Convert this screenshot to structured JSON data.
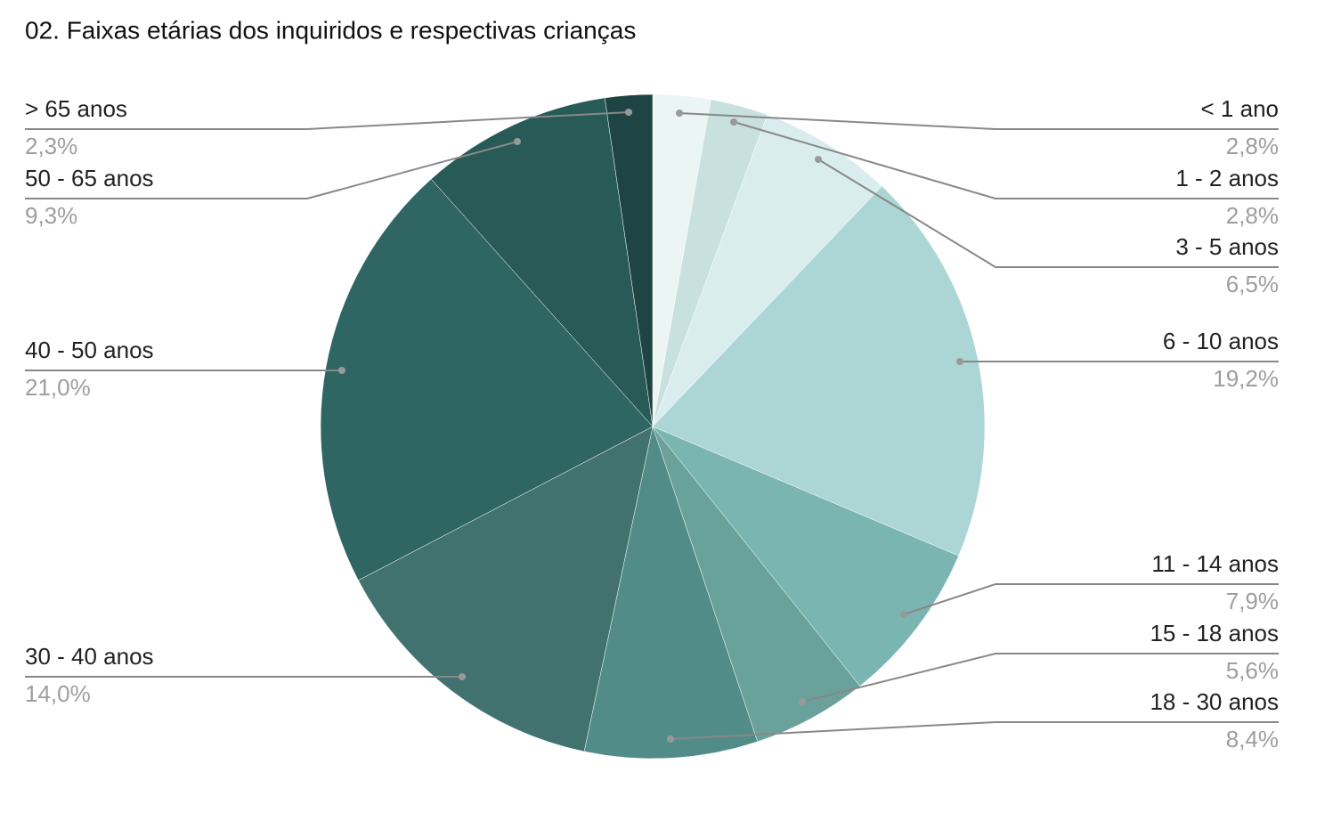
{
  "chart_data": {
    "type": "pie",
    "title": "02. Faixas etárias dos inquiridos e respectivas crianças",
    "categories": [
      "< 1 ano",
      "1 - 2 anos",
      "3 - 5 anos",
      "6 - 10 anos",
      "11 - 14 anos",
      "15 - 18 anos",
      "18 - 30 anos",
      "30 - 40 anos",
      "40 - 50 anos",
      "50 - 65 anos",
      "> 65 anos"
    ],
    "values": [
      2.8,
      2.8,
      6.5,
      19.2,
      7.9,
      5.6,
      8.4,
      14.0,
      21.0,
      9.3,
      2.3
    ],
    "value_labels": [
      "2,8%",
      "2,8%",
      "6,5%",
      "19,2%",
      "7,9%",
      "5,6%",
      "8,4%",
      "14,0%",
      "21,0%",
      "9,3%",
      "2,3%"
    ],
    "colors": [
      "#eaf5f4",
      "#c8e1df",
      "#d9edef",
      "#acd6d6",
      "#7ab5b2",
      "#6aa19b",
      "#528c88",
      "#41726f",
      "#2f6663",
      "#285a57",
      "#1e4543"
    ]
  }
}
